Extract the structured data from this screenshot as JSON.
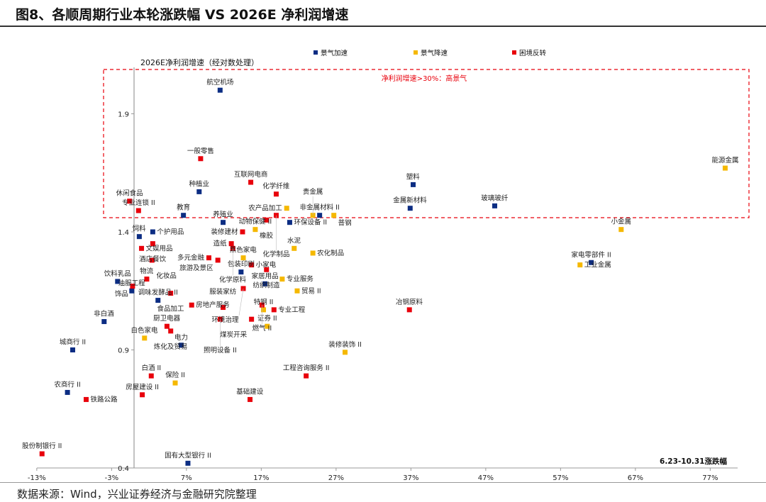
{
  "title": "图8、各顺周期行业本轮涨跌幅  VS 2026E 净利润增速",
  "source": "数据来源：Wind，兴业证券经济与金融研究院整理",
  "chart_data": {
    "type": "scatter",
    "title": "",
    "ylabel": "2026E净利润增速（经对数处理）",
    "xlabel": "6.23-10.31涨跌幅",
    "xlim": [
      -13,
      80
    ],
    "ylim": [
      0.4,
      2.05
    ],
    "x_ticks": [
      "-13%",
      "-3%",
      "7%",
      "17%",
      "27%",
      "37%",
      "47%",
      "57%",
      "67%",
      "77%"
    ],
    "x_tick_values": [
      -13,
      -3,
      7,
      17,
      27,
      37,
      47,
      57,
      67,
      77
    ],
    "y_ticks": [
      "0.4",
      "0.9",
      "1.4",
      "1.9"
    ],
    "y_tick_values": [
      0.4,
      0.9,
      1.4,
      1.9
    ],
    "grid": false,
    "legend_position": "top",
    "annotation": {
      "text": "净利润增速>30%：高景气",
      "threshold_y": 1.46,
      "color": "#e8000b"
    },
    "series": [
      {
        "name": "景气加速",
        "color": "#0c2d83",
        "points": [
          {
            "label": "航空机场",
            "x": 11.5,
            "y": 2.0
          },
          {
            "label": "种植业",
            "x": 8.7,
            "y": 1.57
          },
          {
            "label": "教育",
            "x": 6.6,
            "y": 1.47
          },
          {
            "label": "塑料",
            "x": 37.3,
            "y": 1.6
          },
          {
            "label": "金属新材料",
            "x": 36.9,
            "y": 1.5
          },
          {
            "label": "玻璃玻纤",
            "x": 48.2,
            "y": 1.51
          },
          {
            "label": "非金属材料 II",
            "x": 24.8,
            "y": 1.47
          },
          {
            "label": "环保设备 II",
            "x": 20.8,
            "y": 1.44
          },
          {
            "label": "养殖业",
            "x": 11.9,
            "y": 1.44
          },
          {
            "label": "饲料",
            "x": 0.7,
            "y": 1.38
          },
          {
            "label": "个护用品",
            "x": 2.5,
            "y": 1.4
          },
          {
            "label": "家电零部件 II",
            "x": 61.1,
            "y": 1.27
          },
          {
            "label": "包装印刷",
            "x": 14.3,
            "y": 1.23
          },
          {
            "label": "家居用品",
            "x": 17.5,
            "y": 1.18
          },
          {
            "label": "饮料乳品",
            "x": -2.2,
            "y": 1.19
          },
          {
            "label": "油服工程",
            "x": -0.3,
            "y": 1.15
          },
          {
            "label": "调味发酵品 II",
            "x": 3.2,
            "y": 1.11
          },
          {
            "label": "非白酒",
            "x": -4.0,
            "y": 1.02
          },
          {
            "label": "电力",
            "x": 6.3,
            "y": 0.92
          },
          {
            "label": "城商行 II",
            "x": -8.2,
            "y": 0.9
          },
          {
            "label": "农商行 II",
            "x": -8.9,
            "y": 0.72
          },
          {
            "label": "国有大型银行 II",
            "x": 7.2,
            "y": 0.42
          }
        ]
      },
      {
        "name": "景气降速",
        "color": "#f5b800",
        "points": [
          {
            "label": "能源金属",
            "x": 79.0,
            "y": 1.67
          },
          {
            "label": "小金属",
            "x": 65.1,
            "y": 1.41
          },
          {
            "label": "工业金属",
            "x": 59.6,
            "y": 1.26
          },
          {
            "label": "农产品加工",
            "x": 20.4,
            "y": 1.5
          },
          {
            "label": "贵金属",
            "x": 23.9,
            "y": 1.47
          },
          {
            "label": "普钢",
            "x": 26.7,
            "y": 1.47
          },
          {
            "label": "动物保健 II",
            "x": 16.2,
            "y": 1.41
          },
          {
            "label": "水泥",
            "x": 21.4,
            "y": 1.33
          },
          {
            "label": "农化制品",
            "x": 23.9,
            "y": 1.31
          },
          {
            "label": "黑色家电",
            "x": 14.6,
            "y": 1.29
          },
          {
            "label": "专业服务",
            "x": 19.8,
            "y": 1.2
          },
          {
            "label": "贸易 II",
            "x": 21.8,
            "y": 1.15
          },
          {
            "label": "特钢 II",
            "x": 17.3,
            "y": 1.07
          },
          {
            "label": "证券 II",
            "x": 17.8,
            "y": 1.0
          },
          {
            "label": "白色家电",
            "x": 1.4,
            "y": 0.95
          },
          {
            "label": "装修装饰 II",
            "x": 28.2,
            "y": 0.89
          },
          {
            "label": "保险 II",
            "x": 5.5,
            "y": 0.76
          }
        ]
      },
      {
        "name": "困境反转",
        "color": "#e8000b",
        "points": [
          {
            "label": "一般零售",
            "x": 8.9,
            "y": 1.71
          },
          {
            "label": "互联网电商",
            "x": 15.6,
            "y": 1.61
          },
          {
            "label": "化学纤维",
            "x": 19.0,
            "y": 1.56
          },
          {
            "label": "休闲食品",
            "x": -0.6,
            "y": 1.53
          },
          {
            "label": "专业连锁 II",
            "x": 0.6,
            "y": 1.49
          },
          {
            "label": "橡胶",
            "x": 17.7,
            "y": 1.45
          },
          {
            "label": "化学制品",
            "x": 19.0,
            "y": 1.47
          },
          {
            "label": "装修建材",
            "x": 14.5,
            "y": 1.4
          },
          {
            "label": "造纸",
            "x": 13.0,
            "y": 1.35
          },
          {
            "label": "化学原料",
            "x": 13.2,
            "y": 1.33
          },
          {
            "label": "文娱用品",
            "x": 1.0,
            "y": 1.33
          },
          {
            "label": "酒店餐饮",
            "x": 2.5,
            "y": 1.35
          },
          {
            "label": "化妆品",
            "x": 2.4,
            "y": 1.28
          },
          {
            "label": "多元金融",
            "x": 10.0,
            "y": 1.29
          },
          {
            "label": "旅游及景区",
            "x": 11.2,
            "y": 1.28
          },
          {
            "label": "小家电",
            "x": 15.7,
            "y": 1.26
          },
          {
            "label": "纺织制造",
            "x": 17.7,
            "y": 1.24
          },
          {
            "label": "物流",
            "x": 1.7,
            "y": 1.2
          },
          {
            "label": "饰品",
            "x": -0.2,
            "y": 1.17
          },
          {
            "label": "食品加工",
            "x": 4.9,
            "y": 1.14
          },
          {
            "label": "房地产服务",
            "x": 7.7,
            "y": 1.09
          },
          {
            "label": "环境治理",
            "x": 14.6,
            "y": 1.16
          },
          {
            "label": "服装家纺",
            "x": 11.9,
            "y": 1.08
          },
          {
            "label": "燃气 II",
            "x": 17.1,
            "y": 1.09
          },
          {
            "label": "专业工程",
            "x": 18.7,
            "y": 1.07
          },
          {
            "label": "煤炭开采",
            "x": 15.7,
            "y": 1.03
          },
          {
            "label": "照明设备 II",
            "x": 11.5,
            "y": 1.03
          },
          {
            "label": "冶钢原料",
            "x": 36.8,
            "y": 1.07
          },
          {
            "label": "厨卫电器",
            "x": 4.4,
            "y": 1.0
          },
          {
            "label": "炼化及贸易",
            "x": 4.9,
            "y": 0.98
          },
          {
            "label": "工程咨询服务 II",
            "x": 23.0,
            "y": 0.79
          },
          {
            "label": "白酒 II",
            "x": 2.3,
            "y": 0.79
          },
          {
            "label": "房屋建设 II",
            "x": 1.1,
            "y": 0.71
          },
          {
            "label": "基础建设",
            "x": 15.5,
            "y": 0.69
          },
          {
            "label": "铁路公路",
            "x": -6.4,
            "y": 0.69
          },
          {
            "label": "股份制银行 II",
            "x": -12.3,
            "y": 0.46
          }
        ]
      }
    ]
  }
}
